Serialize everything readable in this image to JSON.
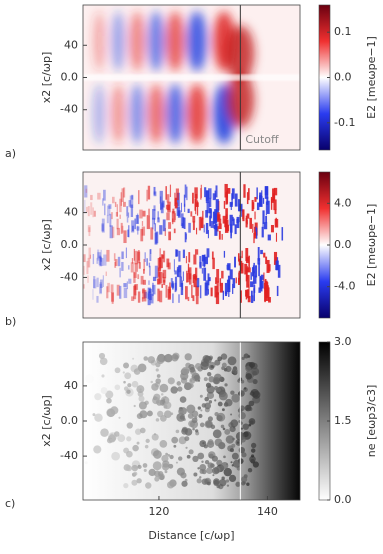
{
  "chart_data": [
    {
      "type": "heatmap",
      "panel_label": "a)",
      "y_label": "x2 [c/ωp]",
      "colorbar_label": "E2 [meωpe−1]",
      "colormap": "RdBu",
      "xlim": [
        106,
        146
      ],
      "ylim": [
        -90,
        90
      ],
      "yticks": [
        40,
        {
          "value": 0,
          "label": "0.0"
        },
        -40
      ],
      "clim": [
        -0.16,
        0.16
      ],
      "cticks": [
        0.1,
        {
          "value": 0,
          "label": "0.0"
        },
        -0.1
      ],
      "cutoff": 135,
      "cutoff_color": "#333333",
      "annotation": "Cutoff"
    },
    {
      "type": "heatmap",
      "panel_label": "b)",
      "y_label": "x2 [c/ωp]",
      "colorbar_label": "E2 [meωpe−1]",
      "colormap": "RdBu",
      "xlim": [
        106,
        146
      ],
      "ylim": [
        -90,
        90
      ],
      "yticks": [
        40,
        {
          "value": 0,
          "label": "0.0"
        },
        -40
      ],
      "clim": [
        -7,
        7
      ],
      "cticks": [
        {
          "value": 4,
          "label": "4.0"
        },
        {
          "value": 0,
          "label": "0.0"
        },
        {
          "value": -4,
          "label": "-4.0"
        }
      ],
      "cutoff": 135,
      "cutoff_color": "#333333"
    },
    {
      "type": "heatmap",
      "panel_label": "c)",
      "y_label": "x2 [c/ωp]",
      "colorbar_label": "ne [eωp3/c3]",
      "colormap": "gray",
      "xlim": [
        106,
        146
      ],
      "ylim": [
        -90,
        90
      ],
      "yticks": [
        40,
        {
          "value": 0,
          "label": "0.0"
        },
        -40
      ],
      "clim": [
        0,
        3
      ],
      "cticks": [
        {
          "value": 3,
          "label": "3.0"
        },
        {
          "value": 1.5,
          "label": "1.5"
        },
        {
          "value": 0,
          "label": "0.0"
        }
      ],
      "xticks": [
        120,
        140
      ],
      "x_label": "Distance [c/ωp]",
      "cutoff": 135,
      "cutoff_color": "#ffffff"
    }
  ]
}
